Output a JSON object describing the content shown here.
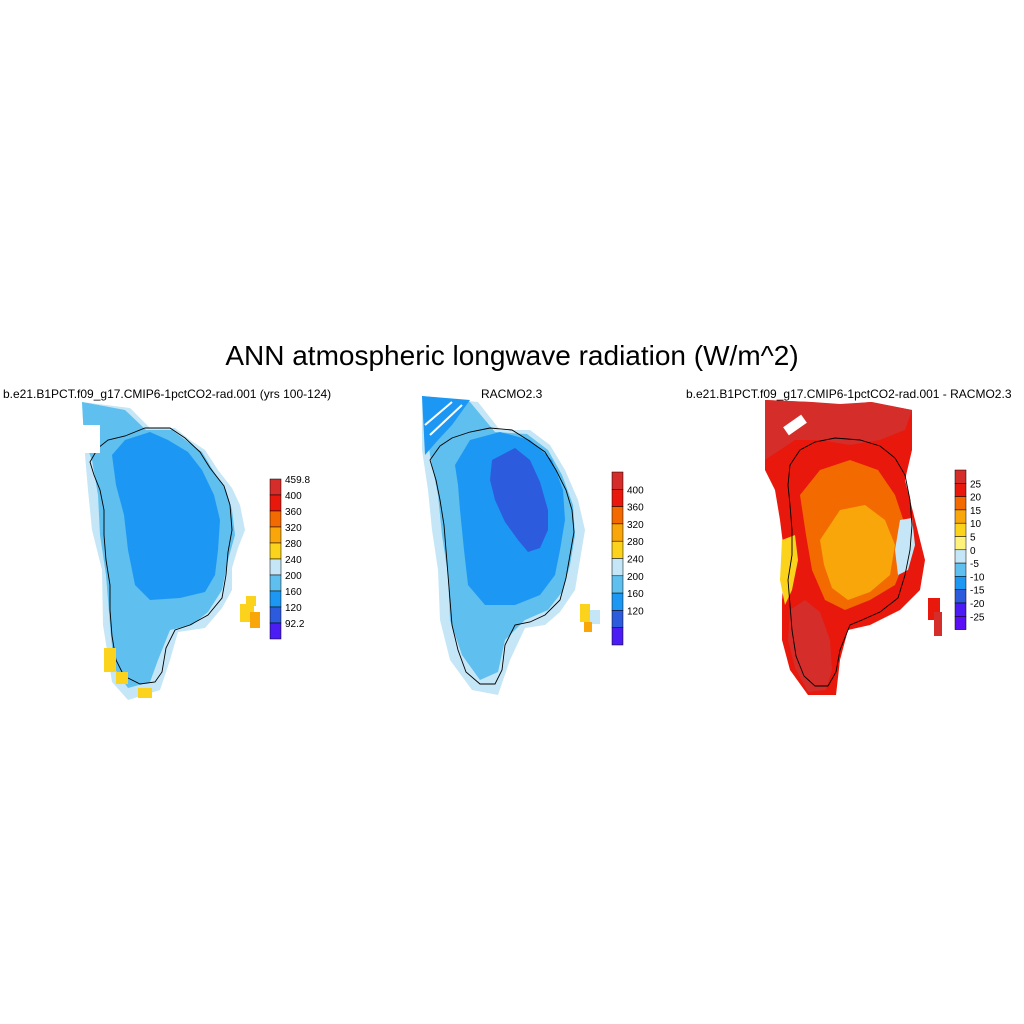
{
  "title": "ANN atmospheric longwave radiation (W/m^2)",
  "panels": [
    {
      "title": "b.e21.B1PCT.f09_g17.CMIP6-1pctCO2-rad.001 (yrs 100-124)",
      "colorbar": {
        "labels": [
          "459.8",
          "400",
          "360",
          "320",
          "280",
          "240",
          "200",
          "160",
          "120",
          "92.2"
        ],
        "colors": [
          "#d42d2a",
          "#e8180c",
          "#f26a00",
          "#f9a60a",
          "#fbd21c",
          "#c5e6f6",
          "#5fbfee",
          "#1c98f4",
          "#2d5bde",
          "#4b1cf3"
        ]
      }
    },
    {
      "title": "RACMO2.3",
      "colorbar": {
        "labels": [
          "400",
          "360",
          "320",
          "280",
          "240",
          "200",
          "160",
          "120"
        ],
        "colors": [
          "#d42d2a",
          "#e8180c",
          "#f26a00",
          "#f9a60a",
          "#fbd21c",
          "#c5e6f6",
          "#5fbfee",
          "#1c98f4",
          "#2d5bde",
          "#4b1cf3"
        ]
      }
    },
    {
      "title": "b.e21.B1PCT.f09_g17.CMIP6-1pctCO2-rad.001 - RACMO2.3",
      "colorbar": {
        "labels": [
          "25",
          "20",
          "15",
          "10",
          "5",
          "0",
          "-5",
          "-10",
          "-15",
          "-20",
          "-25"
        ],
        "colors": [
          "#d42d2a",
          "#e8180c",
          "#f26a00",
          "#f9a60a",
          "#fbd21c",
          "#fff27a",
          "#c5e6f6",
          "#5fbfee",
          "#1c98f4",
          "#2d5bde",
          "#4b1cf3",
          "#5a0ff5"
        ]
      }
    }
  ]
}
